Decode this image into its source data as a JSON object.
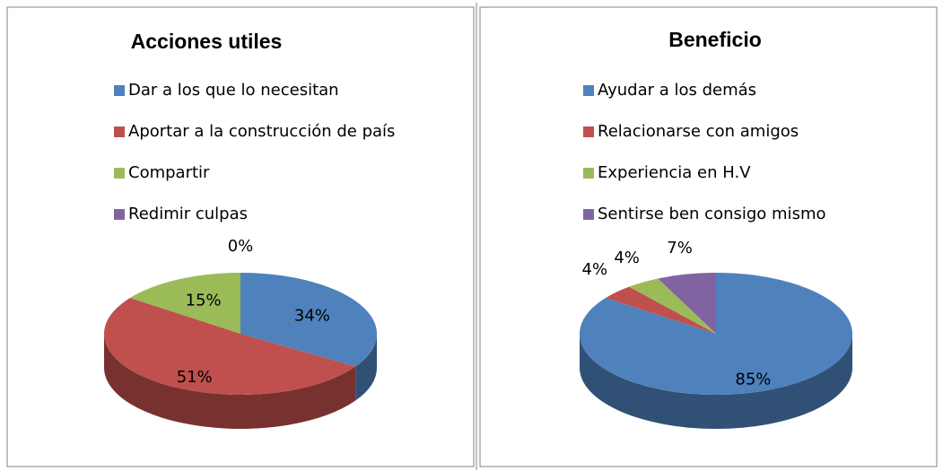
{
  "chart_data": [
    {
      "type": "pie",
      "title": "Acciones utiles",
      "categories": [
        "Dar a los que lo necesitan",
        "Aportar a la construcción de país",
        "Compartir",
        "Redimir culpas"
      ],
      "values": [
        34,
        51,
        15,
        0
      ],
      "value_labels": [
        "34%",
        "51%",
        "15%",
        "0%"
      ],
      "colors": [
        "#4f81bd",
        "#c0504d",
        "#9bbb59",
        "#8064a2"
      ]
    },
    {
      "type": "pie",
      "title": "Beneficio",
      "categories": [
        "Ayudar a los demás",
        "Relacionarse con amigos",
        "Experiencia en H.V",
        "Sentirse ben consigo mismo"
      ],
      "values": [
        85,
        4,
        4,
        7
      ],
      "value_labels": [
        "85%",
        "4%",
        "4%",
        "7%"
      ],
      "colors": [
        "#4f81bd",
        "#c0504d",
        "#9bbb59",
        "#8064a2"
      ]
    }
  ]
}
